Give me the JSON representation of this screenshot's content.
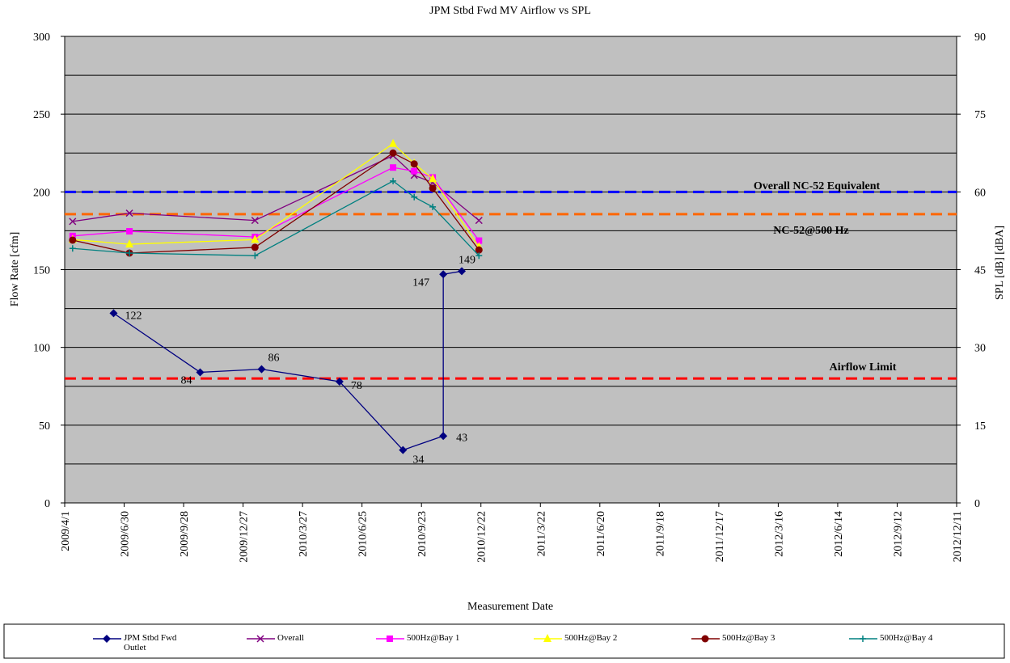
{
  "chart_data": {
    "type": "line",
    "title": "JPM Stbd Fwd MV Airflow vs SPL",
    "x_label": "Measurement Date",
    "y_label": "Flow Rate [cfm]",
    "y2_label": "SPL [dB] [dBA]",
    "xlim": [
      "2009-04-01",
      "2012-12-11"
    ],
    "xticks": [
      {
        "value": "2009-04-01",
        "label": "2009/4/1"
      },
      {
        "value": "2009-06-30",
        "label": "2009/6/30"
      },
      {
        "value": "2009-09-28",
        "label": "2009/9/28"
      },
      {
        "value": "2009-12-27",
        "label": "2009/12/27"
      },
      {
        "value": "2010-03-27",
        "label": "2010/3/27"
      },
      {
        "value": "2010-06-25",
        "label": "2010/6/25"
      },
      {
        "value": "2010-09-23",
        "label": "2010/9/23"
      },
      {
        "value": "2010-12-22",
        "label": "2010/12/22"
      },
      {
        "value": "2011-03-22",
        "label": "2011/3/22"
      },
      {
        "value": "2011-06-20",
        "label": "2011/6/20"
      },
      {
        "value": "2011-09-18",
        "label": "2011/9/18"
      },
      {
        "value": "2011-12-17",
        "label": "2011/12/17"
      },
      {
        "value": "2012-03-16",
        "label": "2012/3/16"
      },
      {
        "value": "2012-06-14",
        "label": "2012/6/14"
      },
      {
        "value": "2012-09-12",
        "label": "2012/9/12"
      },
      {
        "value": "2012-12-11",
        "label": "2012/12/11"
      }
    ],
    "ylim": [
      0,
      300
    ],
    "yticks": [
      0,
      50,
      100,
      150,
      200,
      250,
      300
    ],
    "ygrid": [
      25,
      50,
      75,
      100,
      125,
      150,
      175,
      200,
      225,
      250,
      275
    ],
    "y2lim": [
      0,
      90
    ],
    "y2ticks": [
      0,
      15,
      30,
      45,
      60,
      75,
      90
    ],
    "grid": true,
    "legend": "bottom",
    "reference_lines": [
      {
        "label": "Overall NC-52 Equivalent",
        "value": 60,
        "axis": "y2",
        "color": "#0000ff"
      },
      {
        "label": "NC-52@500 Hz",
        "value": 55.7,
        "axis": "y2",
        "color": "#ff6600"
      },
      {
        "label": "Airflow Limit",
        "value": 80,
        "axis": "y",
        "color": "#ff0000"
      }
    ],
    "series": [
      {
        "name": "JPM Stbd Fwd Outlet",
        "color": "#000080",
        "marker": "diamond",
        "axis": "y",
        "show_values": true,
        "x": [
          "2009-06-14",
          "2009-10-23",
          "2010-01-24",
          "2010-05-22",
          "2010-08-26",
          "2010-10-26",
          "2010-10-26",
          "2010-11-23"
        ],
        "values": [
          122,
          84,
          86,
          78,
          34,
          43,
          147,
          149
        ]
      },
      {
        "name": "Overall",
        "color": "#800080",
        "marker": "x",
        "axis": "y2",
        "x": [
          "2009-04-13",
          "2009-07-08",
          "2010-01-14",
          "2010-08-11",
          "2010-09-12",
          "2010-10-10",
          "2010-12-19"
        ],
        "values": [
          54.3,
          55.9,
          54.5,
          67.0,
          63.2,
          61.8,
          54.5
        ]
      },
      {
        "name": "500Hz@Bay 1",
        "color": "#ff00ff",
        "marker": "square",
        "axis": "y2",
        "x": [
          "2009-04-13",
          "2009-07-08",
          "2010-01-14",
          "2010-08-11",
          "2010-09-12",
          "2010-10-10",
          "2010-12-19"
        ],
        "values": [
          51.5,
          52.4,
          51.3,
          64.7,
          64.0,
          62.8,
          50.6
        ]
      },
      {
        "name": "500Hz@Bay 2",
        "color": "#ffff00",
        "marker": "triangle",
        "axis": "y2",
        "x": [
          "2009-04-13",
          "2009-07-08",
          "2010-01-14",
          "2010-08-11",
          "2010-09-12",
          "2010-10-10",
          "2010-12-19"
        ],
        "values": [
          50.8,
          49.9,
          50.8,
          69.3,
          65.5,
          62.5,
          49.4
        ]
      },
      {
        "name": "500Hz@Bay 3",
        "color": "#800000",
        "marker": "circle",
        "axis": "y2",
        "x": [
          "2009-04-13",
          "2009-07-08",
          "2010-01-14",
          "2010-08-11",
          "2010-09-12",
          "2010-10-10",
          "2010-12-19"
        ],
        "values": [
          50.7,
          48.2,
          49.3,
          67.5,
          65.4,
          60.7,
          48.8
        ]
      },
      {
        "name": "500Hz@Bay 4",
        "color": "#008080",
        "marker": "plus",
        "axis": "y2",
        "x": [
          "2009-04-13",
          "2009-07-08",
          "2010-01-14",
          "2010-08-11",
          "2010-09-12",
          "2010-10-10",
          "2010-12-19"
        ],
        "values": [
          49.1,
          48.2,
          47.7,
          62.1,
          59.0,
          57.1,
          47.7
        ]
      }
    ]
  }
}
